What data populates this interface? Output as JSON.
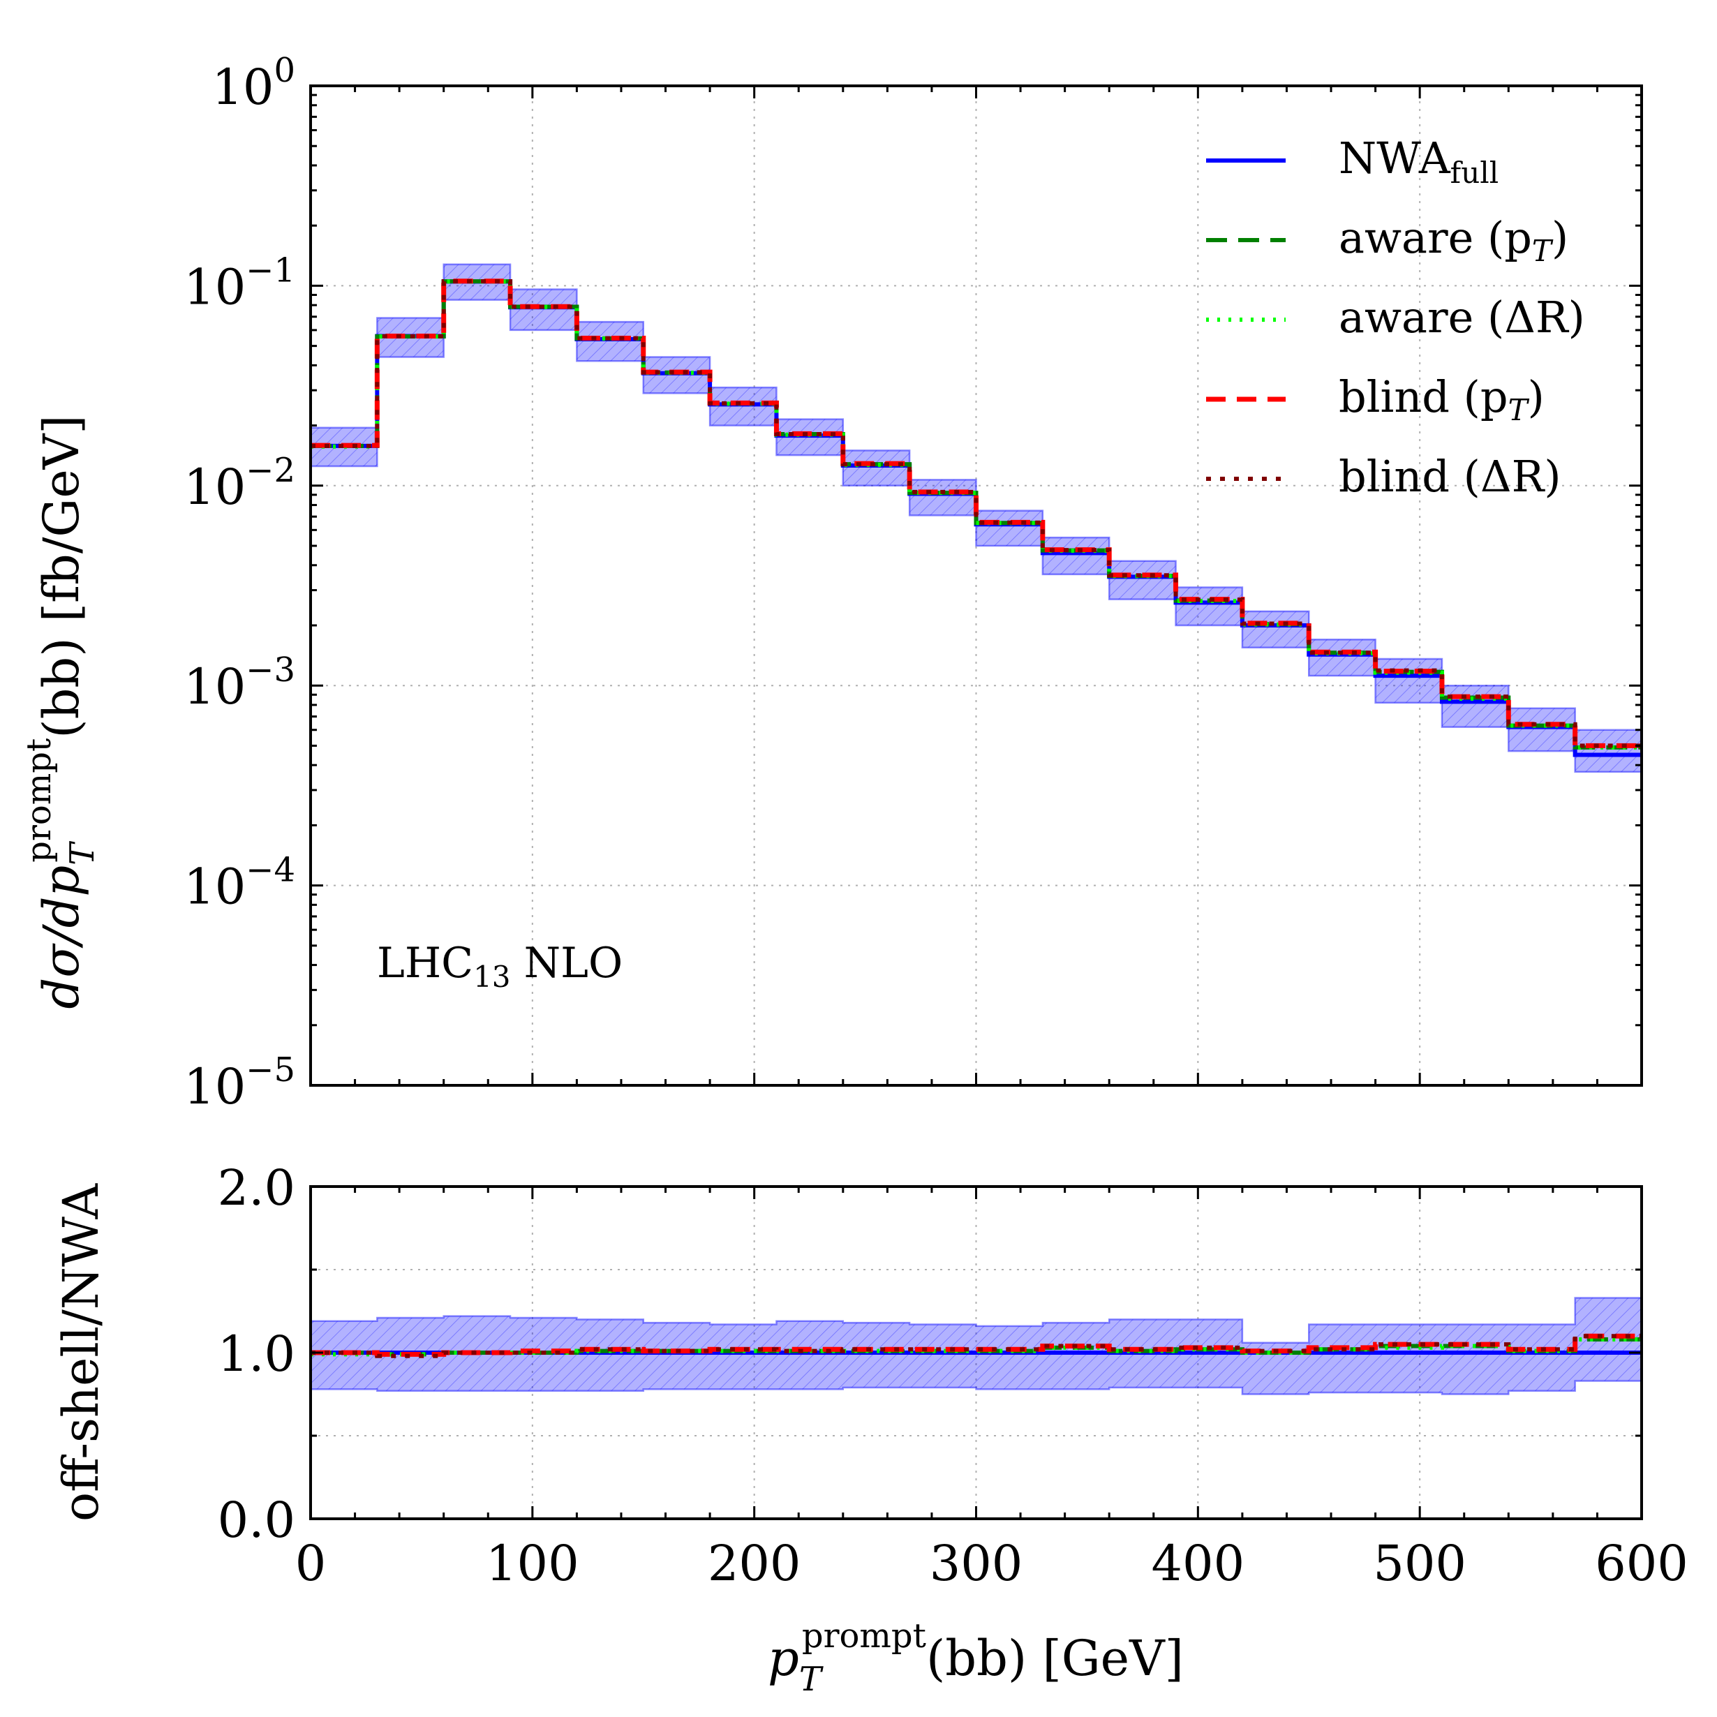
{
  "chart_data": [
    {
      "type": "line",
      "panel": "main",
      "style": "step-histogram",
      "yscale": "log",
      "xlim": [
        0,
        600
      ],
      "ylim": [
        1e-05,
        1
      ],
      "y_ticks": [
        {
          "value": 1,
          "mant": "10",
          "exp": "0"
        },
        {
          "value": 0.1,
          "mant": "10",
          "exp": "−1"
        },
        {
          "value": 0.01,
          "mant": "10",
          "exp": "−2"
        },
        {
          "value": 0.001,
          "mant": "10",
          "exp": "−3"
        },
        {
          "value": 0.0001,
          "mant": "10",
          "exp": "−4"
        },
        {
          "value": 1e-05,
          "mant": "10",
          "exp": "−5"
        }
      ],
      "ylabel": {
        "main": "dσ/dp",
        "sub": "T",
        "sup": "prompt",
        "tail": "(bb) [fb/GeV]"
      },
      "annotation": {
        "main": "LHC",
        "sub": "13",
        "tail": " NLO"
      },
      "grid": true,
      "legend_position": "top-right",
      "bin_edges": [
        0,
        30,
        60,
        90,
        120,
        150,
        180,
        210,
        240,
        270,
        300,
        330,
        360,
        390,
        420,
        450,
        480,
        510,
        540,
        570,
        600
      ],
      "band": {
        "name": "NWA uncertainty",
        "color": "#0000ff",
        "lower": [
          0.0125,
          0.044,
          0.085,
          0.06,
          0.042,
          0.029,
          0.02,
          0.0142,
          0.01,
          0.0071,
          0.005,
          0.0036,
          0.0027,
          0.002,
          0.00155,
          0.00112,
          0.00082,
          0.00062,
          0.00047,
          0.00037
        ],
        "upper": [
          0.0195,
          0.069,
          0.128,
          0.096,
          0.066,
          0.044,
          0.031,
          0.0215,
          0.015,
          0.0107,
          0.0075,
          0.0055,
          0.0042,
          0.0031,
          0.00235,
          0.0017,
          0.00136,
          0.001,
          0.00077,
          0.0006
        ]
      },
      "series": [
        {
          "name": "NWA_full",
          "label_main": "NWA",
          "label_sub": "full",
          "label_tail": "",
          "color": "#0000ff",
          "dash": "",
          "width": 6,
          "values": [
            0.0158,
            0.056,
            0.105,
            0.078,
            0.054,
            0.0365,
            0.0255,
            0.0178,
            0.0126,
            0.0091,
            0.0064,
            0.0046,
            0.0035,
            0.0026,
            0.002,
            0.00143,
            0.00112,
            0.00083,
            0.00062,
            0.00045
          ]
        },
        {
          "name": "aware (p_T)",
          "label_main": "aware (p",
          "label_sub": "T",
          "label_tail": ")",
          "color": "#008000",
          "dash": "30,16",
          "width": 6,
          "values": [
            0.0158,
            0.0558,
            0.1052,
            0.0785,
            0.0545,
            0.0368,
            0.0258,
            0.0181,
            0.0128,
            0.0092,
            0.00651,
            0.00474,
            0.00354,
            0.00266,
            0.00203,
            0.00146,
            0.00117,
            0.00087,
            0.00063,
            0.00049
          ]
        },
        {
          "name": "aware (ΔR)",
          "label_main": "aware (ΔR)",
          "label_sub": "",
          "label_tail": "",
          "color": "#00ff00",
          "dash": "4,12",
          "width": 6,
          "values": [
            0.0157,
            0.0557,
            0.105,
            0.0783,
            0.0544,
            0.0367,
            0.0257,
            0.018,
            0.0127,
            0.0092,
            0.0065,
            0.00472,
            0.00353,
            0.00265,
            0.00202,
            0.00145,
            0.00116,
            0.00086,
            0.00063,
            0.00049
          ]
        },
        {
          "name": "blind (p_T)",
          "label_main": "blind (p",
          "label_sub": "T",
          "label_tail": ")",
          "color": "#ff0000",
          "dash": "28,16",
          "width": 7,
          "values": [
            0.0159,
            0.056,
            0.1055,
            0.0787,
            0.0547,
            0.037,
            0.0259,
            0.0182,
            0.0129,
            0.0093,
            0.00655,
            0.00478,
            0.00357,
            0.0027,
            0.00205,
            0.00147,
            0.00118,
            0.00088,
            0.00064,
            0.0005
          ]
        },
        {
          "name": "blind (ΔR)",
          "label_main": "blind (ΔR)",
          "label_sub": "",
          "label_tail": "",
          "color": "#800000",
          "dash": "7,13",
          "width": 6,
          "values": [
            0.0158,
            0.0559,
            0.1053,
            0.0786,
            0.0546,
            0.0369,
            0.0258,
            0.0181,
            0.0128,
            0.0093,
            0.00653,
            0.00476,
            0.00356,
            0.00269,
            0.00204,
            0.00146,
            0.00119,
            0.00088,
            0.00064,
            0.0005
          ]
        }
      ]
    },
    {
      "type": "line",
      "panel": "ratio",
      "style": "step-histogram",
      "yscale": "linear",
      "xlim": [
        0,
        600
      ],
      "ylim": [
        0,
        2.0
      ],
      "y_ticks": [
        {
          "value": 0.0,
          "label": "0.0"
        },
        {
          "value": 1.0,
          "label": "1.0"
        },
        {
          "value": 2.0,
          "label": "2.0"
        }
      ],
      "y_grid": [
        0.5,
        1.0,
        1.5
      ],
      "x_ticks": [
        {
          "value": 0,
          "label": "0"
        },
        {
          "value": 100,
          "label": "100"
        },
        {
          "value": 200,
          "label": "200"
        },
        {
          "value": 300,
          "label": "300"
        },
        {
          "value": 400,
          "label": "400"
        },
        {
          "value": 500,
          "label": "500"
        },
        {
          "value": 600,
          "label": "600"
        }
      ],
      "ylabel": "off-shell/NWA",
      "xlabel": {
        "main": "p",
        "sub": "T",
        "sup": "prompt",
        "tail": "(bb) [GeV]"
      },
      "grid": true,
      "bin_edges": [
        0,
        30,
        60,
        90,
        120,
        150,
        180,
        210,
        240,
        270,
        300,
        330,
        360,
        390,
        420,
        450,
        480,
        510,
        540,
        570,
        600
      ],
      "band": {
        "name": "NWA uncertainty",
        "color": "#0000ff",
        "lower": [
          0.78,
          0.77,
          0.77,
          0.77,
          0.77,
          0.78,
          0.78,
          0.78,
          0.79,
          0.79,
          0.78,
          0.78,
          0.79,
          0.79,
          0.75,
          0.76,
          0.76,
          0.75,
          0.77,
          0.83
        ],
        "upper": [
          1.19,
          1.21,
          1.22,
          1.21,
          1.2,
          1.18,
          1.17,
          1.19,
          1.18,
          1.17,
          1.16,
          1.18,
          1.2,
          1.2,
          1.06,
          1.17,
          1.17,
          1.17,
          1.17,
          1.33
        ]
      },
      "series": [
        {
          "name": "NWA_full",
          "color": "#0000ff",
          "dash": "",
          "width": 6,
          "values": [
            1.0,
            1.0,
            1.0,
            1.0,
            1.0,
            1.0,
            1.0,
            1.0,
            1.0,
            1.0,
            1.0,
            1.0,
            1.0,
            1.0,
            1.0,
            1.0,
            1.0,
            1.0,
            1.0,
            1.0
          ]
        },
        {
          "name": "aware (p_T)",
          "color": "#008000",
          "dash": "30,16",
          "width": 6,
          "values": [
            1.0,
            0.99,
            1.0,
            1.0,
            1.01,
            1.01,
            1.01,
            1.01,
            1.01,
            1.01,
            1.01,
            1.03,
            1.01,
            1.02,
            1.0,
            1.02,
            1.04,
            1.04,
            1.01,
            1.08
          ]
        },
        {
          "name": "aware (ΔR)",
          "color": "#00ff00",
          "dash": "4,12",
          "width": 6,
          "values": [
            0.99,
            0.99,
            1.0,
            1.0,
            1.01,
            1.01,
            1.01,
            1.01,
            1.01,
            1.01,
            1.01,
            1.03,
            1.01,
            1.02,
            1.0,
            1.02,
            1.03,
            1.04,
            1.01,
            1.08
          ]
        },
        {
          "name": "blind (p_T)",
          "color": "#ff0000",
          "dash": "28,16",
          "width": 7,
          "values": [
            1.0,
            0.99,
            1.0,
            1.01,
            1.02,
            1.01,
            1.02,
            1.02,
            1.02,
            1.02,
            1.02,
            1.04,
            1.02,
            1.03,
            1.01,
            1.03,
            1.05,
            1.05,
            1.02,
            1.1
          ]
        },
        {
          "name": "blind (ΔR)",
          "color": "#800000",
          "dash": "7,13",
          "width": 6,
          "values": [
            1.0,
            0.98,
            1.0,
            1.0,
            1.02,
            1.01,
            1.02,
            1.01,
            1.02,
            1.02,
            1.02,
            1.04,
            1.02,
            1.03,
            1.01,
            1.02,
            1.05,
            1.05,
            1.02,
            1.1
          ]
        }
      ]
    }
  ]
}
